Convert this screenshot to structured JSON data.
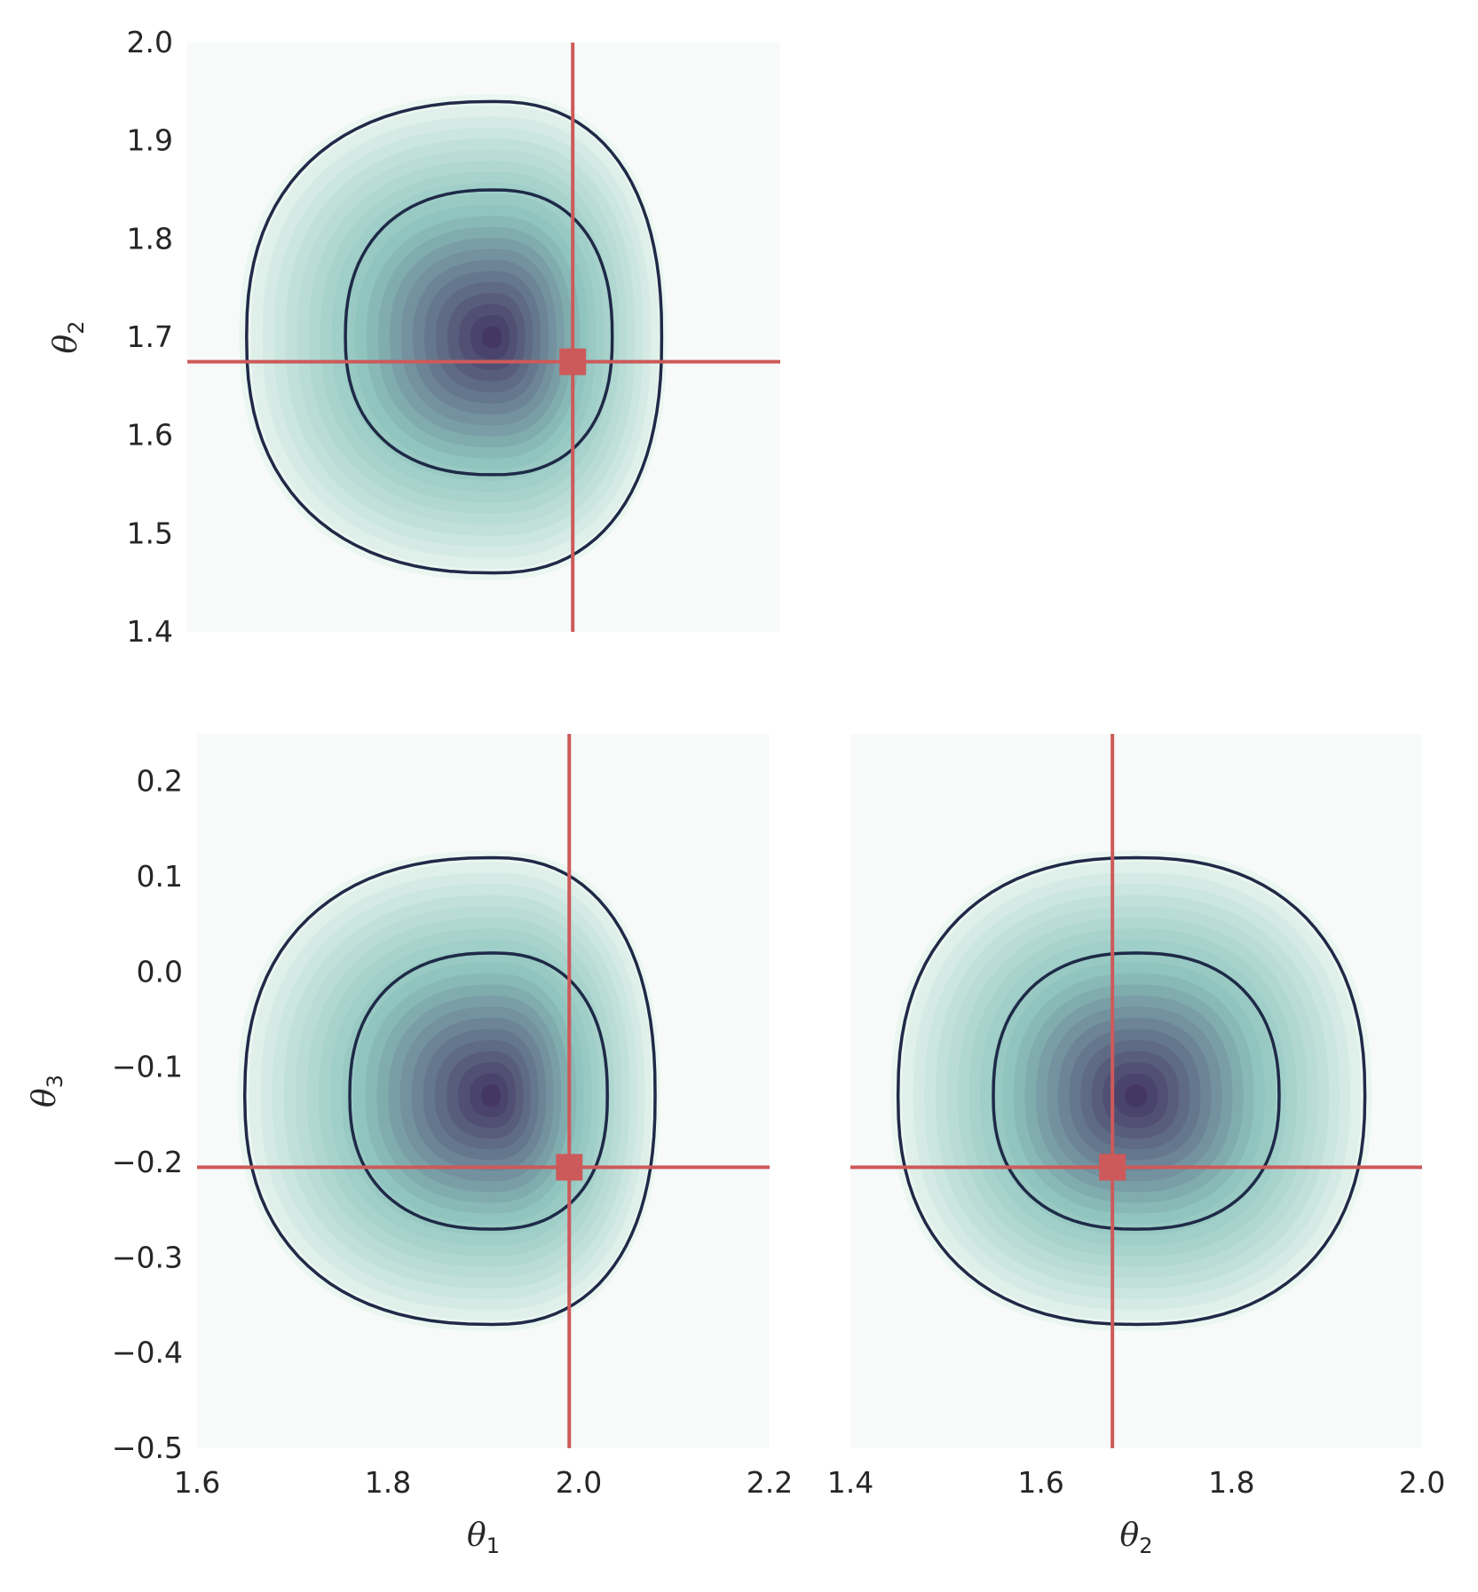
{
  "colors": {
    "panel_background": "#f7faf9",
    "contour_line": "#1e2a47",
    "truth_marker": "#cd5a5a",
    "density_low": "#eaf6f0",
    "density_mid": "#8ec4be",
    "density_high": "#3d2a5c"
  },
  "chart_data": [
    {
      "id": "theta1-theta2",
      "type": "contour",
      "xlabel": "",
      "ylabel": {
        "symbol": "θ",
        "sub": "2"
      },
      "xlim": [
        1.6,
        2.2
      ],
      "ylim": [
        1.4,
        2.0
      ],
      "xticks": [],
      "yticks": [
        "1.4",
        "1.5",
        "1.6",
        "1.7",
        "1.8",
        "1.9",
        "2.0"
      ],
      "ytick_values": [
        1.4,
        1.5,
        1.6,
        1.7,
        1.8,
        1.9,
        2.0
      ],
      "peak": {
        "x": 1.91,
        "y": 1.7
      },
      "contour_levels": [
        {
          "name": "inner",
          "extent": {
            "x_min": 1.76,
            "x_max": 2.03,
            "y_min": 1.56,
            "y_max": 1.85
          }
        },
        {
          "name": "outer",
          "extent": {
            "x_min": 1.66,
            "x_max": 2.08,
            "y_min": 1.46,
            "y_max": 1.94
          }
        }
      ],
      "truth": {
        "x": 1.99,
        "y": 1.675
      }
    },
    {
      "id": "theta1-theta3",
      "type": "contour",
      "xlabel": {
        "symbol": "θ",
        "sub": "1"
      },
      "ylabel": {
        "symbol": "θ",
        "sub": "3"
      },
      "xlim": [
        1.6,
        2.2
      ],
      "ylim": [
        -0.5,
        0.25
      ],
      "xticks": [
        "1.6",
        "1.8",
        "2.0",
        "2.2"
      ],
      "xtick_values": [
        1.6,
        1.8,
        2.0,
        2.2
      ],
      "yticks": [
        "−0.5",
        "−0.4",
        "−0.3",
        "−0.2",
        "−0.1",
        "0.0",
        "0.1",
        "0.2"
      ],
      "ytick_values": [
        -0.5,
        -0.4,
        -0.3,
        -0.2,
        -0.1,
        0.0,
        0.1,
        0.2
      ],
      "peak": {
        "x": 1.91,
        "y": -0.13
      },
      "contour_levels": [
        {
          "name": "inner",
          "extent": {
            "x_min": 1.76,
            "x_max": 2.03,
            "y_min": -0.27,
            "y_max": 0.02
          }
        },
        {
          "name": "outer",
          "extent": {
            "x_min": 1.65,
            "x_max": 2.08,
            "y_min": -0.37,
            "y_max": 0.12
          }
        }
      ],
      "truth": {
        "x": 1.99,
        "y": -0.205
      }
    },
    {
      "id": "theta2-theta3",
      "type": "contour",
      "xlabel": {
        "symbol": "θ",
        "sub": "2"
      },
      "ylabel": "",
      "xlim": [
        1.4,
        2.0
      ],
      "ylim": [
        -0.5,
        0.25
      ],
      "xticks": [
        "1.4",
        "1.6",
        "1.8",
        "2.0"
      ],
      "xtick_values": [
        1.4,
        1.6,
        1.8,
        2.0
      ],
      "yticks": [],
      "peak": {
        "x": 1.7,
        "y": -0.13
      },
      "contour_levels": [
        {
          "name": "inner",
          "extent": {
            "x_min": 1.55,
            "x_max": 1.85,
            "y_min": -0.27,
            "y_max": 0.02
          }
        },
        {
          "name": "outer",
          "extent": {
            "x_min": 1.45,
            "x_max": 1.94,
            "y_min": -0.37,
            "y_max": 0.12
          }
        }
      ],
      "truth": {
        "x": 1.675,
        "y": -0.205
      }
    }
  ]
}
